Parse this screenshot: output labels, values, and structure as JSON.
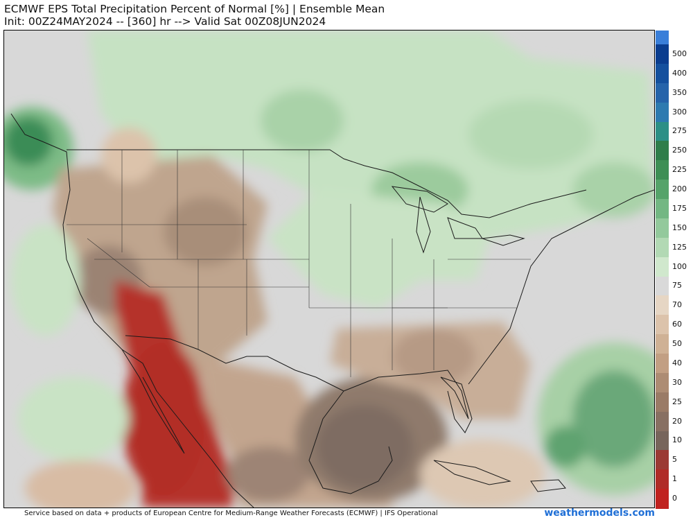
{
  "header": {
    "title": "ECMWF EPS Total Precipitation Percent of Normal [%] | Ensemble Mean",
    "subtitle": "Init: 00Z24MAY2024 -- [360] hr --> Valid Sat 00Z08JUN2024"
  },
  "legend": {
    "ticks": [
      "500",
      "400",
      "350",
      "300",
      "275",
      "250",
      "225",
      "200",
      "175",
      "150",
      "125",
      "100",
      "75",
      "70",
      "60",
      "50",
      "40",
      "30",
      "25",
      "20",
      "10",
      "5",
      "1",
      "0"
    ],
    "colors": [
      "#0a3d8f",
      "#14509e",
      "#2563aa",
      "#2d7ab0",
      "#2c8f86",
      "#2f7d4a",
      "#3e8f55",
      "#55a36a",
      "#73b783",
      "#93c99c",
      "#b2d9b4",
      "#d0e8cd",
      "#d9d9d9",
      "#e6d6c4",
      "#dcc3ab",
      "#cfb195",
      "#c29f83",
      "#ad8c73",
      "#9a7b66",
      "#887062",
      "#77655b",
      "#9b3a34",
      "#b02b27",
      "#c0221f"
    ]
  },
  "footer": {
    "credit": "Service based on data + products of European Centre for Medium-Range Weather Forecasts (ECMWF) | IFS Operational",
    "brand": "weathermodels.com"
  }
}
